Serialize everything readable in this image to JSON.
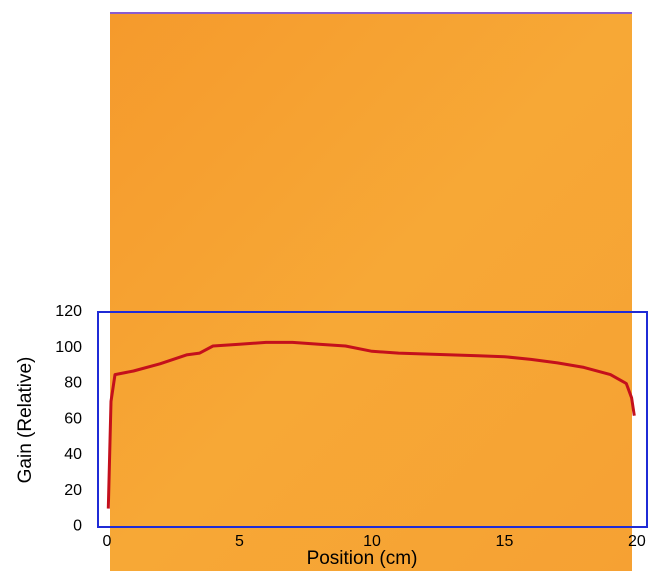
{
  "chart_data": {
    "type": "line",
    "xlabel": "Position (cm)",
    "ylabel": "Gain (Relative)",
    "x": [
      0.05,
      0.15,
      0.3,
      1,
      2,
      3,
      3.5,
      4,
      5,
      6,
      7,
      8,
      9,
      10,
      11,
      12,
      13,
      14,
      15,
      16,
      17,
      18,
      19,
      19.6,
      19.8,
      19.9
    ],
    "series": [
      {
        "color": "#c4101c",
        "values": [
          10,
          70,
          85,
          87,
          91,
          96,
          97,
          101,
          102,
          103,
          103,
          102,
          101,
          98,
          97,
          96.5,
          96,
          95.5,
          95,
          93.5,
          91.5,
          89,
          85,
          80,
          72,
          62
        ]
      }
    ],
    "xlim": [
      -0.34,
      20.38
    ],
    "xticks": [
      0,
      5,
      10,
      15,
      20
    ],
    "ylim": [
      -0.3,
      120
    ],
    "yticks": [
      0,
      20,
      40,
      60,
      80,
      100,
      120
    ]
  }
}
